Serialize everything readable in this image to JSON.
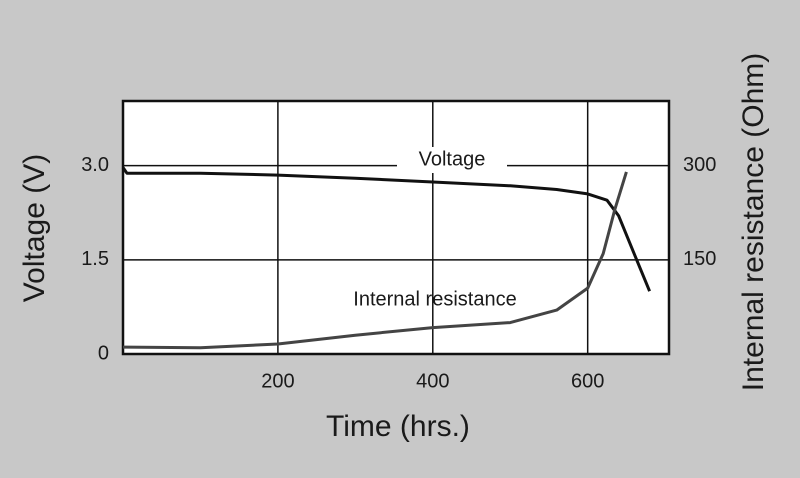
{
  "chart_data": {
    "type": "line",
    "x_label": "Time (hrs.)",
    "y_label": "Voltage (V)",
    "y2_label": "Internal resistance (Ohm)",
    "xlim": [
      0,
      705
    ],
    "xticks": [
      200,
      400,
      600
    ],
    "ylim": [
      0,
      4.03
    ],
    "yticks": [
      0,
      1.5,
      {
        "value": 3,
        "label": "3.0"
      }
    ],
    "y2lim": [
      0,
      403
    ],
    "y2ticks": [
      150,
      300
    ],
    "grid": true,
    "series": [
      {
        "name": "Voltage",
        "color": "#111111",
        "x": [
          0,
          5,
          100,
          200,
          300,
          400,
          500,
          560,
          600,
          625,
          640,
          660,
          680
        ],
        "values": [
          2.97,
          2.88,
          2.88,
          2.85,
          2.8,
          2.74,
          2.68,
          2.62,
          2.55,
          2.45,
          2.2,
          1.6,
          1.0
        ]
      },
      {
        "name": "Internal resistance",
        "color": "#444444",
        "axis": "y2",
        "x": [
          0,
          100,
          200,
          300,
          400,
          500,
          560,
          600,
          620,
          635,
          650
        ],
        "values": [
          11,
          10,
          16,
          30,
          42,
          50,
          70,
          105,
          160,
          230,
          290
        ]
      }
    ]
  }
}
